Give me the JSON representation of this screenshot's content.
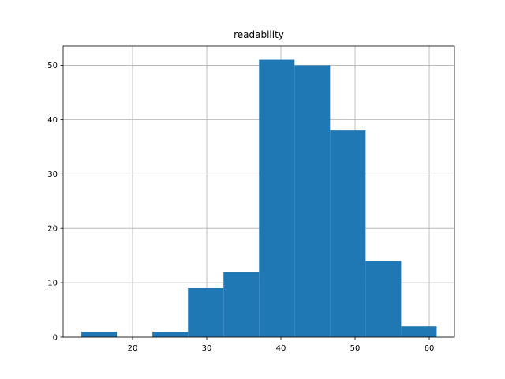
{
  "chart_data": {
    "type": "histogram",
    "title": "readability",
    "bins": [
      13.1,
      17.89,
      22.68,
      27.47,
      32.26,
      37.05,
      41.84,
      46.63,
      51.42,
      56.21,
      61.0
    ],
    "counts": [
      1,
      0,
      1,
      9,
      12,
      51,
      50,
      38,
      14,
      2
    ],
    "color": "#1f77b4",
    "xlim": [
      10.64,
      63.4
    ],
    "xticks": [
      20,
      30,
      40,
      50,
      60
    ],
    "ylim": [
      0,
      53.55
    ],
    "yticks": [
      0,
      10,
      20,
      30,
      40,
      50
    ],
    "grid": true
  }
}
